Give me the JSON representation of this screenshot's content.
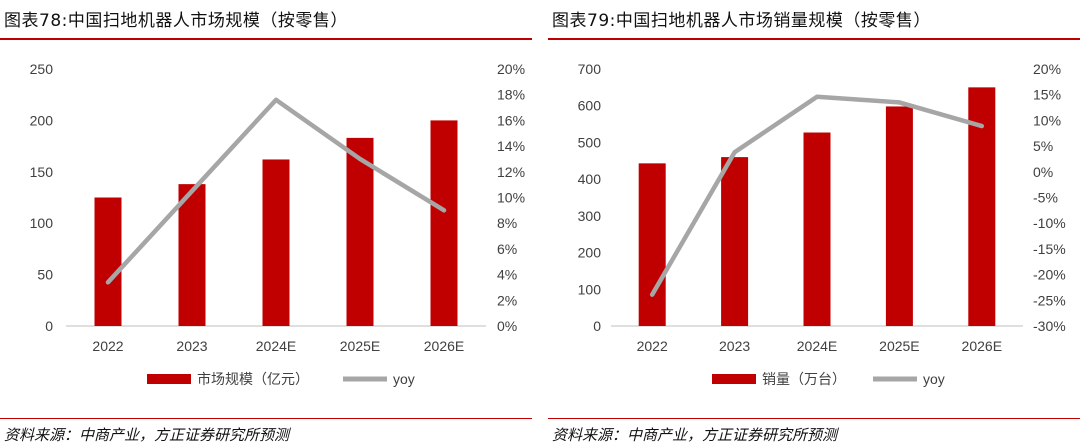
{
  "charts": [
    {
      "title": "图表78:中国扫地机器人市场规模（按零售）",
      "source": "资料来源：中商产业，方正证券研究所预测",
      "colors": {
        "bar": "#c00000",
        "line": "#a6a6a6"
      },
      "chart_data": {
        "type": "bar",
        "categories": [
          "2022",
          "2023",
          "2024E",
          "2025E",
          "2026E"
        ],
        "series": [
          {
            "name": "市场规模（亿元）",
            "type": "bar",
            "axis": "left",
            "values": [
              125,
              138,
              162,
              183,
              200
            ]
          },
          {
            "name": "yoy",
            "type": "line",
            "axis": "right",
            "values": [
              3.4,
              10.5,
              17.6,
              13.0,
              9.0
            ]
          }
        ],
        "y_left": {
          "min": 0,
          "max": 250,
          "ticks": [
            "0",
            "50",
            "100",
            "150",
            "200",
            "250"
          ]
        },
        "y_right": {
          "min": 0,
          "max": 20,
          "ticks": [
            "0%",
            "2%",
            "4%",
            "6%",
            "8%",
            "10%",
            "12%",
            "14%",
            "16%",
            "18%",
            "20%"
          ]
        },
        "grid": false,
        "legend": "bottom"
      }
    },
    {
      "title": "图表79:中国扫地机器人市场销量规模（按零售）",
      "source": "资料来源：中商产业，方正证券研究所预测",
      "colors": {
        "bar": "#c00000",
        "line": "#a6a6a6"
      },
      "chart_data": {
        "type": "bar",
        "categories": [
          "2022",
          "2023",
          "2024E",
          "2025E",
          "2026E"
        ],
        "series": [
          {
            "name": "销量（万台）",
            "type": "bar",
            "axis": "left",
            "values": [
              443,
              460,
              527,
              598,
              650
            ]
          },
          {
            "name": "yoy",
            "type": "line",
            "axis": "right",
            "values": [
              -23.9,
              3.8,
              14.6,
              13.5,
              8.9
            ]
          }
        ],
        "y_left": {
          "min": 0,
          "max": 700,
          "ticks": [
            "0",
            "100",
            "200",
            "300",
            "400",
            "500",
            "600",
            "700"
          ]
        },
        "y_right": {
          "min": -30,
          "max": 20,
          "ticks": [
            "-30%",
            "-25%",
            "-20%",
            "-15%",
            "-10%",
            "-5%",
            "0%",
            "5%",
            "10%",
            "15%",
            "20%"
          ]
        },
        "grid": false,
        "legend": "bottom"
      }
    }
  ]
}
